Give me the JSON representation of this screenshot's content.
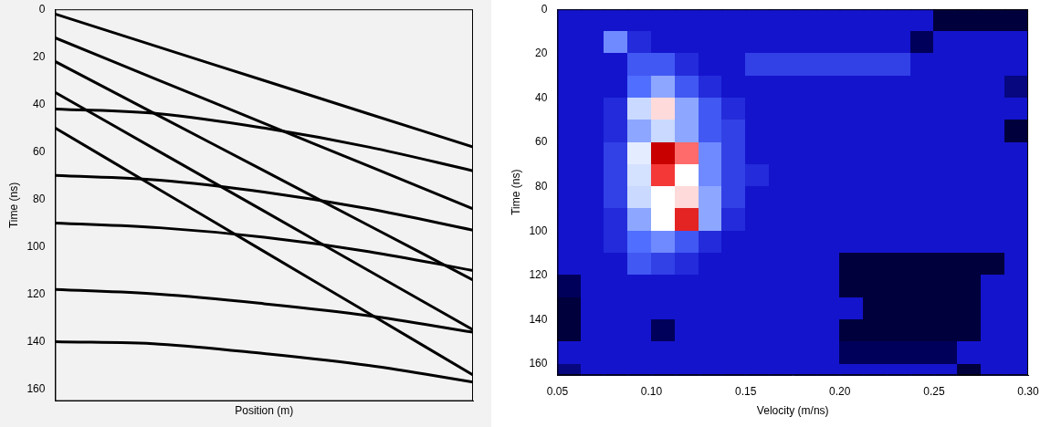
{
  "chart_data": [
    {
      "type": "line",
      "x_label": "Position (m)",
      "y_label": "Time (ns)",
      "x": [
        0,
        2.5,
        5,
        7.5,
        10
      ],
      "series": [
        {
          "color": "#000000",
          "values": [
            2,
            16,
            30,
            44,
            58
          ]
        },
        {
          "color": "#000000",
          "values": [
            12,
            30,
            48,
            66,
            84
          ]
        },
        {
          "color": "#000000",
          "values": [
            22,
            45,
            68,
            91,
            114
          ]
        },
        {
          "color": "#000000",
          "values": [
            35,
            60,
            85,
            110,
            135
          ]
        },
        {
          "color": "#000000",
          "values": [
            50,
            76,
            102,
            128,
            154
          ]
        },
        {
          "color": "#000000",
          "values": [
            42,
            44,
            50,
            58,
            68
          ]
        },
        {
          "color": "#000000",
          "values": [
            70,
            72,
            77,
            84,
            93
          ]
        },
        {
          "color": "#000000",
          "values": [
            90,
            92,
            96,
            102,
            110
          ]
        },
        {
          "color": "#000000",
          "values": [
            118,
            120,
            124,
            129,
            136
          ]
        },
        {
          "color": "#000000",
          "values": [
            140,
            141,
            145,
            150,
            157
          ]
        }
      ],
      "xlim": [
        0,
        10
      ],
      "ylim": [
        0,
        165
      ],
      "yticks": [
        0,
        20,
        40,
        60,
        80,
        100,
        120,
        140,
        160
      ],
      "tick_labels": "y",
      "grid": false
    },
    {
      "type": "heatmap",
      "x_label": "Velocity (m/ns)",
      "y_label": "Time (ns)",
      "xlim": [
        0.05,
        0.3
      ],
      "ylim": [
        0,
        165
      ],
      "xticks": [
        0.05,
        {
          "value": 0.1,
          "label": "0.10"
        },
        0.15,
        {
          "value": 0.2,
          "label": "0.20"
        },
        0.25,
        {
          "value": 0.3,
          "label": "0.30"
        }
      ],
      "yticks": [
        0,
        20,
        40,
        60,
        80,
        100,
        120,
        140,
        160
      ],
      "grid": false,
      "zlim": [
        0,
        1
      ],
      "x_edges": [
        0.05,
        0.0625,
        0.075,
        0.0875,
        0.1,
        0.1125,
        0.125,
        0.1375,
        0.15,
        0.1625,
        0.175,
        0.1875,
        0.2,
        0.2125,
        0.225,
        0.2375,
        0.25,
        0.2625,
        0.275,
        0.2875,
        0.3
      ],
      "y_edges": [
        0,
        10,
        20,
        30,
        40,
        50,
        60,
        70,
        80,
        90,
        100,
        110,
        120,
        130,
        140,
        150,
        160,
        170
      ],
      "cells": [
        [
          0.3,
          0.3,
          0.3,
          0.3,
          0.3,
          0.3,
          0.3,
          0.3,
          0.3,
          0.3,
          0.3,
          0.3,
          0.3,
          0.3,
          0.3,
          0.3,
          0.1,
          0.1,
          0.1,
          0.1
        ],
        [
          0.3,
          0.3,
          0.55,
          0.35,
          0.3,
          0.3,
          0.3,
          0.3,
          0.3,
          0.3,
          0.3,
          0.3,
          0.3,
          0.3,
          0.3,
          0.15,
          0.3,
          0.3,
          0.3,
          0.3
        ],
        [
          0.3,
          0.3,
          0.3,
          0.45,
          0.45,
          0.35,
          0.3,
          0.3,
          0.4,
          0.4,
          0.4,
          0.4,
          0.4,
          0.4,
          0.4,
          0.3,
          0.3,
          0.3,
          0.3,
          0.3
        ],
        [
          0.3,
          0.3,
          0.3,
          0.5,
          0.6,
          0.45,
          0.35,
          0.3,
          0.3,
          0.3,
          0.3,
          0.3,
          0.3,
          0.3,
          0.3,
          0.3,
          0.3,
          0.3,
          0.3,
          0.2
        ],
        [
          0.3,
          0.3,
          0.35,
          0.7,
          0.82,
          0.6,
          0.45,
          0.35,
          0.3,
          0.3,
          0.3,
          0.3,
          0.3,
          0.3,
          0.3,
          0.3,
          0.3,
          0.3,
          0.3,
          0.3
        ],
        [
          0.3,
          0.3,
          0.35,
          0.6,
          0.7,
          0.6,
          0.45,
          0.4,
          0.3,
          0.3,
          0.3,
          0.3,
          0.3,
          0.3,
          0.3,
          0.3,
          0.3,
          0.3,
          0.3,
          0.1
        ],
        [
          0.3,
          0.3,
          0.4,
          0.75,
          1.0,
          0.88,
          0.55,
          0.4,
          0.3,
          0.3,
          0.3,
          0.3,
          0.3,
          0.3,
          0.3,
          0.3,
          0.3,
          0.3,
          0.3,
          0.3
        ],
        [
          0.3,
          0.3,
          0.4,
          0.72,
          0.92,
          0.8,
          0.55,
          0.4,
          0.35,
          0.3,
          0.3,
          0.3,
          0.3,
          0.3,
          0.3,
          0.3,
          0.3,
          0.3,
          0.3,
          0.3
        ],
        [
          0.3,
          0.3,
          0.4,
          0.7,
          0.8,
          0.82,
          0.6,
          0.4,
          0.3,
          0.3,
          0.3,
          0.3,
          0.3,
          0.3,
          0.3,
          0.3,
          0.3,
          0.3,
          0.3,
          0.3
        ],
        [
          0.3,
          0.3,
          0.35,
          0.6,
          0.8,
          0.95,
          0.6,
          0.35,
          0.3,
          0.3,
          0.3,
          0.3,
          0.3,
          0.3,
          0.3,
          0.3,
          0.3,
          0.3,
          0.3,
          0.3
        ],
        [
          0.3,
          0.3,
          0.35,
          0.5,
          0.55,
          0.45,
          0.35,
          0.3,
          0.3,
          0.3,
          0.3,
          0.3,
          0.3,
          0.3,
          0.3,
          0.3,
          0.3,
          0.3,
          0.3,
          0.3
        ],
        [
          0.3,
          0.3,
          0.3,
          0.45,
          0.4,
          0.35,
          0.3,
          0.3,
          0.3,
          0.3,
          0.3,
          0.3,
          0.1,
          0.1,
          0.1,
          0.1,
          0.1,
          0.1,
          0.1,
          0.3
        ],
        [
          0.15,
          0.3,
          0.3,
          0.3,
          0.3,
          0.3,
          0.3,
          0.3,
          0.3,
          0.3,
          0.3,
          0.3,
          0.1,
          0.1,
          0.1,
          0.1,
          0.1,
          0.1,
          0.3,
          0.3
        ],
        [
          0.1,
          0.3,
          0.3,
          0.3,
          0.3,
          0.3,
          0.3,
          0.3,
          0.3,
          0.3,
          0.3,
          0.3,
          0.3,
          0.1,
          0.1,
          0.1,
          0.1,
          0.1,
          0.3,
          0.3
        ],
        [
          0.1,
          0.3,
          0.3,
          0.3,
          0.15,
          0.3,
          0.3,
          0.3,
          0.3,
          0.3,
          0.3,
          0.3,
          0.1,
          0.1,
          0.1,
          0.1,
          0.1,
          0.1,
          0.3,
          0.3
        ],
        [
          0.3,
          0.3,
          0.3,
          0.3,
          0.3,
          0.3,
          0.3,
          0.3,
          0.3,
          0.3,
          0.3,
          0.3,
          0.15,
          0.15,
          0.15,
          0.15,
          0.15,
          0.3,
          0.3,
          0.3
        ],
        [
          0.2,
          0.3,
          0.3,
          0.3,
          0.3,
          0.3,
          0.3,
          0.3,
          0.3,
          0.3,
          0.3,
          0.3,
          0.3,
          0.3,
          0.3,
          0.3,
          0.3,
          0.1,
          0.3,
          0.3
        ]
      ]
    }
  ]
}
